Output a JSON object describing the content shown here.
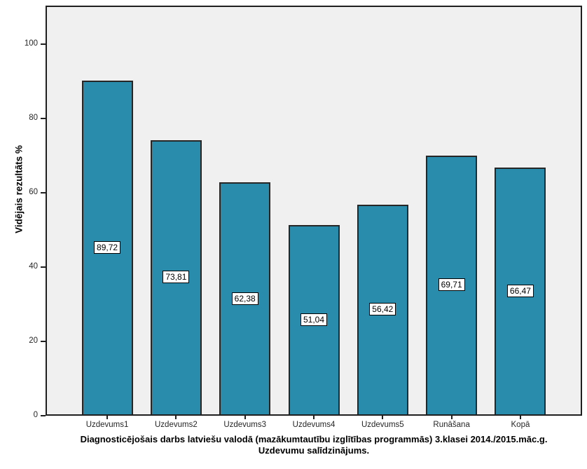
{
  "chart_data": {
    "type": "bar",
    "categories": [
      "Uzdevums1",
      "Uzdevums2",
      "Uzdevums3",
      "Uzdevums4",
      "Uzdevums5",
      "Runāšana",
      "Kopā"
    ],
    "values": [
      89.72,
      73.81,
      62.38,
      51.04,
      56.42,
      69.71,
      66.47
    ],
    "value_labels": [
      "89,72",
      "73,81",
      "62,38",
      "51,04",
      "56,42",
      "69,71",
      "66,47"
    ],
    "title": "Diagnosticējošais darbs latviešu valodā (mazākumtautību izglītības programmās) 3.klasei 2014./2015.māc.g.",
    "subtitle": "Uzdevumu salīdzinājums.",
    "xlabel": "",
    "ylabel": "Vidējais rezultāts %",
    "ylim": [
      0,
      110.4
    ],
    "yticks": [
      0,
      20,
      40,
      60,
      80,
      100
    ],
    "grid": false,
    "legend": "none",
    "bar_color": "#2A8CAD",
    "bar_border_color": "#262626",
    "plot_background": "#F0F0F0",
    "frame_color": "#1F1F1F"
  }
}
